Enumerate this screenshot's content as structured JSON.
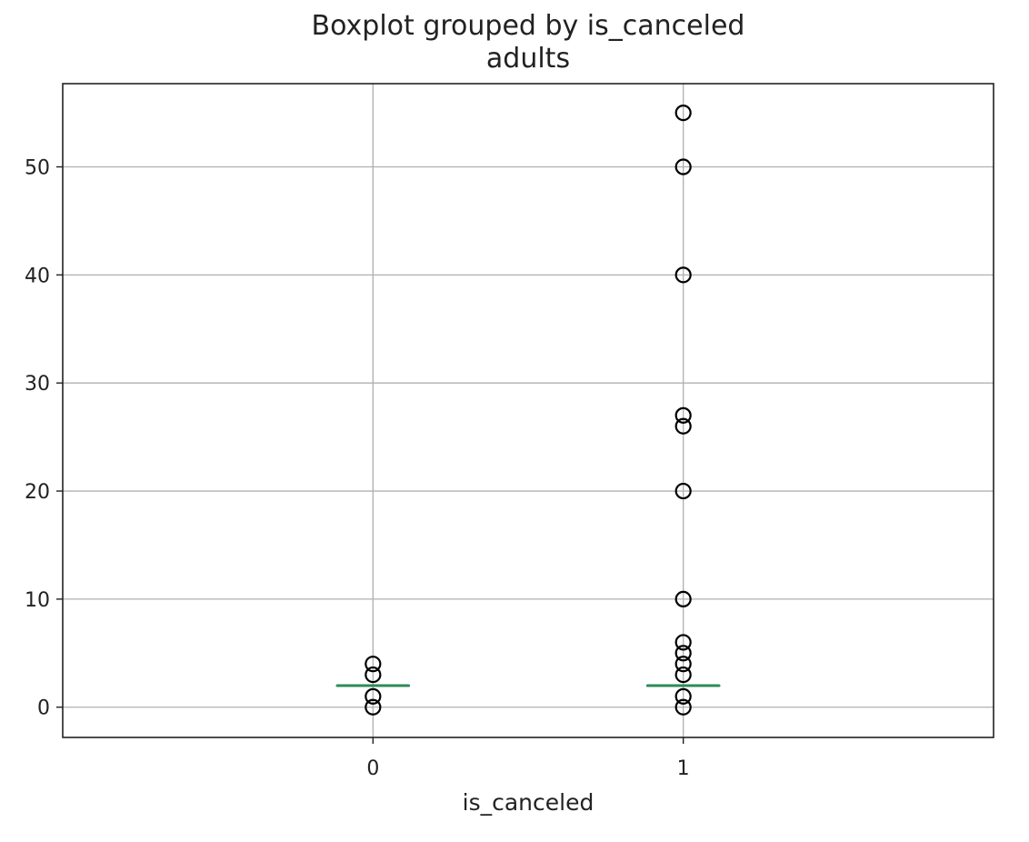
{
  "chart_data": {
    "type": "boxplot",
    "title": "Boxplot grouped by is_canceled",
    "subtitle": "adults",
    "xlabel": "is_canceled",
    "ylabel": "",
    "categories": [
      "0",
      "1"
    ],
    "ylim": [
      -2.8,
      57.7
    ],
    "yticks": [
      0,
      10,
      20,
      30,
      40,
      50
    ],
    "grid": true,
    "boxes": [
      {
        "category": "0",
        "whisker_low": 2,
        "q1": 2,
        "median": 2,
        "q3": 2,
        "whisker_high": 2,
        "outliers": [
          0,
          1,
          3,
          4
        ]
      },
      {
        "category": "1",
        "whisker_low": 2,
        "q1": 2,
        "median": 2,
        "q3": 2,
        "whisker_high": 2,
        "outliers": [
          0,
          1,
          3,
          4,
          5,
          6,
          10,
          20,
          26,
          27,
          40,
          50,
          55
        ]
      }
    ],
    "colors": {
      "median": "#2e8b57",
      "box": "#1f77b4",
      "outlier": "#000000",
      "grid": "#b0b0b0"
    }
  }
}
